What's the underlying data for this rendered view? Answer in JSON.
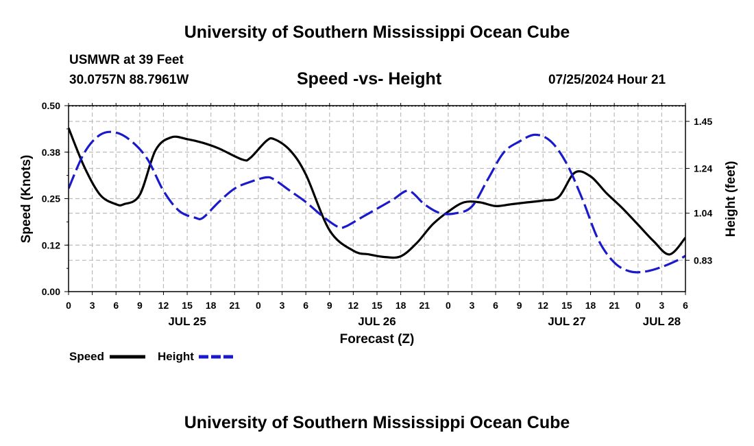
{
  "header": {
    "title": "University of Southern Mississippi Ocean Cube",
    "station": "USMWR at 39 Feet",
    "coords": "30.0757N  88.7961W",
    "subtitle": "Speed -vs- Height",
    "datetime": "07/25/2024 Hour 21"
  },
  "footer": {
    "title": "University of Southern Mississippi Ocean Cube"
  },
  "legend": {
    "speed_label": "Speed",
    "height_label": "Height"
  },
  "colors": {
    "speed": "#000000",
    "height": "#1a1acc",
    "grid": "#bbbbbb"
  },
  "chart_data": {
    "type": "line",
    "title": "Speed -vs- Height",
    "xlabel": "Forecast (Z)",
    "ylabel": "Speed (Knots)",
    "y2label": "Height (feet)",
    "x_hours_range": [
      0,
      78
    ],
    "x_tick_labels": [
      "0",
      "3",
      "6",
      "9",
      "12",
      "15",
      "18",
      "21",
      "0",
      "3",
      "6",
      "9",
      "12",
      "15",
      "18",
      "21",
      "0",
      "3",
      "6",
      "9",
      "12",
      "15",
      "18",
      "21",
      "0",
      "3",
      "6"
    ],
    "x_date_labels": [
      {
        "hour": 15,
        "label": "JUL 25"
      },
      {
        "hour": 39,
        "label": "JUL 26"
      },
      {
        "hour": 63,
        "label": "JUL 27"
      },
      {
        "hour": 75,
        "label": "JUL 28"
      }
    ],
    "y_range": [
      0,
      0.5
    ],
    "y_ticks": [
      0.0,
      0.125,
      0.25,
      0.375,
      0.5
    ],
    "y_tick_labels": [
      "0.00",
      "0.12",
      "0.25",
      "0.38",
      "0.50"
    ],
    "y2_range": [
      0.69,
      1.52
    ],
    "y2_ticks": [
      0.83,
      1.04,
      1.24,
      1.45
    ],
    "y2_tick_labels": [
      "0.83",
      "1.04",
      "1.24",
      "1.45"
    ],
    "series": [
      {
        "name": "Speed",
        "axis": "left",
        "style": "solid",
        "x": [
          0,
          2,
          4,
          6,
          7,
          9,
          11,
          13,
          15,
          17,
          19,
          22,
          23,
          25,
          26,
          28,
          30,
          33,
          36,
          38,
          40,
          42,
          44,
          46,
          48,
          50,
          52,
          54,
          56,
          58,
          60,
          62,
          64,
          66,
          68,
          70,
          72,
          74,
          76,
          78
        ],
        "values": [
          0.44,
          0.335,
          0.26,
          0.235,
          0.235,
          0.26,
          0.38,
          0.415,
          0.41,
          0.4,
          0.385,
          0.355,
          0.36,
          0.405,
          0.41,
          0.38,
          0.315,
          0.165,
          0.11,
          0.1,
          0.093,
          0.095,
          0.13,
          0.18,
          0.215,
          0.24,
          0.24,
          0.23,
          0.235,
          0.24,
          0.245,
          0.255,
          0.32,
          0.31,
          0.265,
          0.225,
          0.18,
          0.135,
          0.1,
          0.145
        ]
      },
      {
        "name": "Height",
        "axis": "right",
        "style": "dashed",
        "x": [
          0,
          2,
          4,
          6,
          8,
          10,
          12,
          14,
          16,
          17,
          19,
          21,
          23,
          25,
          26,
          28,
          30,
          32,
          34,
          35,
          37,
          39,
          41,
          43,
          45,
          47,
          49,
          51,
          53,
          55,
          57,
          59,
          61,
          63,
          65,
          67,
          69,
          71,
          73,
          75,
          77,
          78
        ],
        "values": [
          1.15,
          1.31,
          1.39,
          1.4,
          1.36,
          1.28,
          1.14,
          1.05,
          1.02,
          1.02,
          1.09,
          1.15,
          1.18,
          1.2,
          1.19,
          1.14,
          1.09,
          1.03,
          0.98,
          0.98,
          1.02,
          1.06,
          1.1,
          1.14,
          1.08,
          1.04,
          1.04,
          1.07,
          1.19,
          1.31,
          1.36,
          1.39,
          1.36,
          1.26,
          1.1,
          0.92,
          0.82,
          0.78,
          0.78,
          0.8,
          0.83,
          0.85
        ]
      }
    ]
  }
}
